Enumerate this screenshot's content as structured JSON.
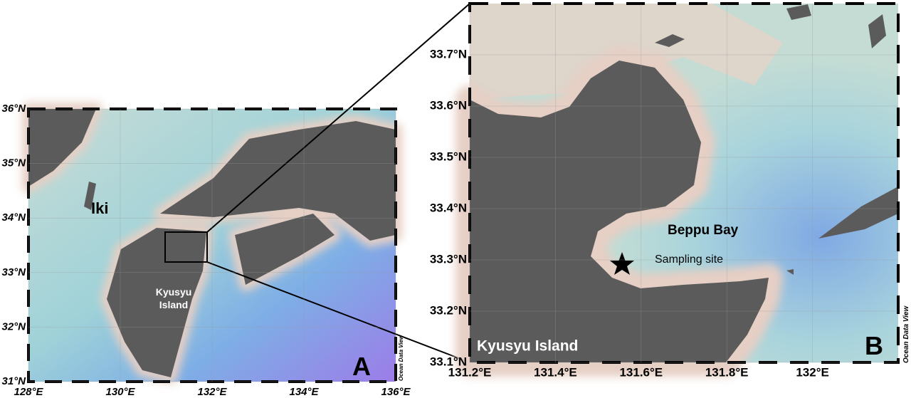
{
  "panel_a": {
    "label": "A",
    "lon_range": [
      128,
      136
    ],
    "lat_range": [
      31,
      36
    ],
    "lon_ticks": [
      {
        "value": 128,
        "label": "128°E"
      },
      {
        "value": 130,
        "label": "130°E"
      },
      {
        "value": 132,
        "label": "132°E"
      },
      {
        "value": 134,
        "label": "134°E"
      },
      {
        "value": 136,
        "label": "136°E"
      }
    ],
    "lat_ticks": [
      {
        "value": 31,
        "label": "31°N"
      },
      {
        "value": 32,
        "label": "32°N"
      },
      {
        "value": 33,
        "label": "33°N"
      },
      {
        "value": 34,
        "label": "34°N"
      },
      {
        "value": 35,
        "label": "35°N"
      },
      {
        "value": 36,
        "label": "36°N"
      }
    ],
    "place_labels": {
      "iki": "Iki",
      "island": [
        "Kyusyu",
        "Island"
      ]
    },
    "credit": "Ocean Data View"
  },
  "panel_b": {
    "label": "B",
    "lon_range": [
      131.2,
      132.2
    ],
    "lat_range": [
      33.1,
      33.8
    ],
    "lon_ticks": [
      {
        "value": 131.2,
        "label": "131.2°E"
      },
      {
        "value": 131.4,
        "label": "131.4°E"
      },
      {
        "value": 131.6,
        "label": "131.6°E"
      },
      {
        "value": 131.8,
        "label": "131.8°E"
      },
      {
        "value": 132,
        "label": "132°E"
      }
    ],
    "lat_ticks": [
      {
        "value": 33.1,
        "label": "33.1°N"
      },
      {
        "value": 33.2,
        "label": "33.2°N"
      },
      {
        "value": 33.3,
        "label": "33.3°N"
      },
      {
        "value": 33.4,
        "label": "33.4°N"
      },
      {
        "value": 33.5,
        "label": "33.5°N"
      },
      {
        "value": 33.6,
        "label": "33.6°N"
      },
      {
        "value": 33.7,
        "label": "33.7°N"
      }
    ],
    "place_labels": {
      "bay": "Beppu Bay",
      "site": "Sampling site",
      "island": "Kyusyu Island"
    },
    "credit": "Ocean Data View"
  }
}
